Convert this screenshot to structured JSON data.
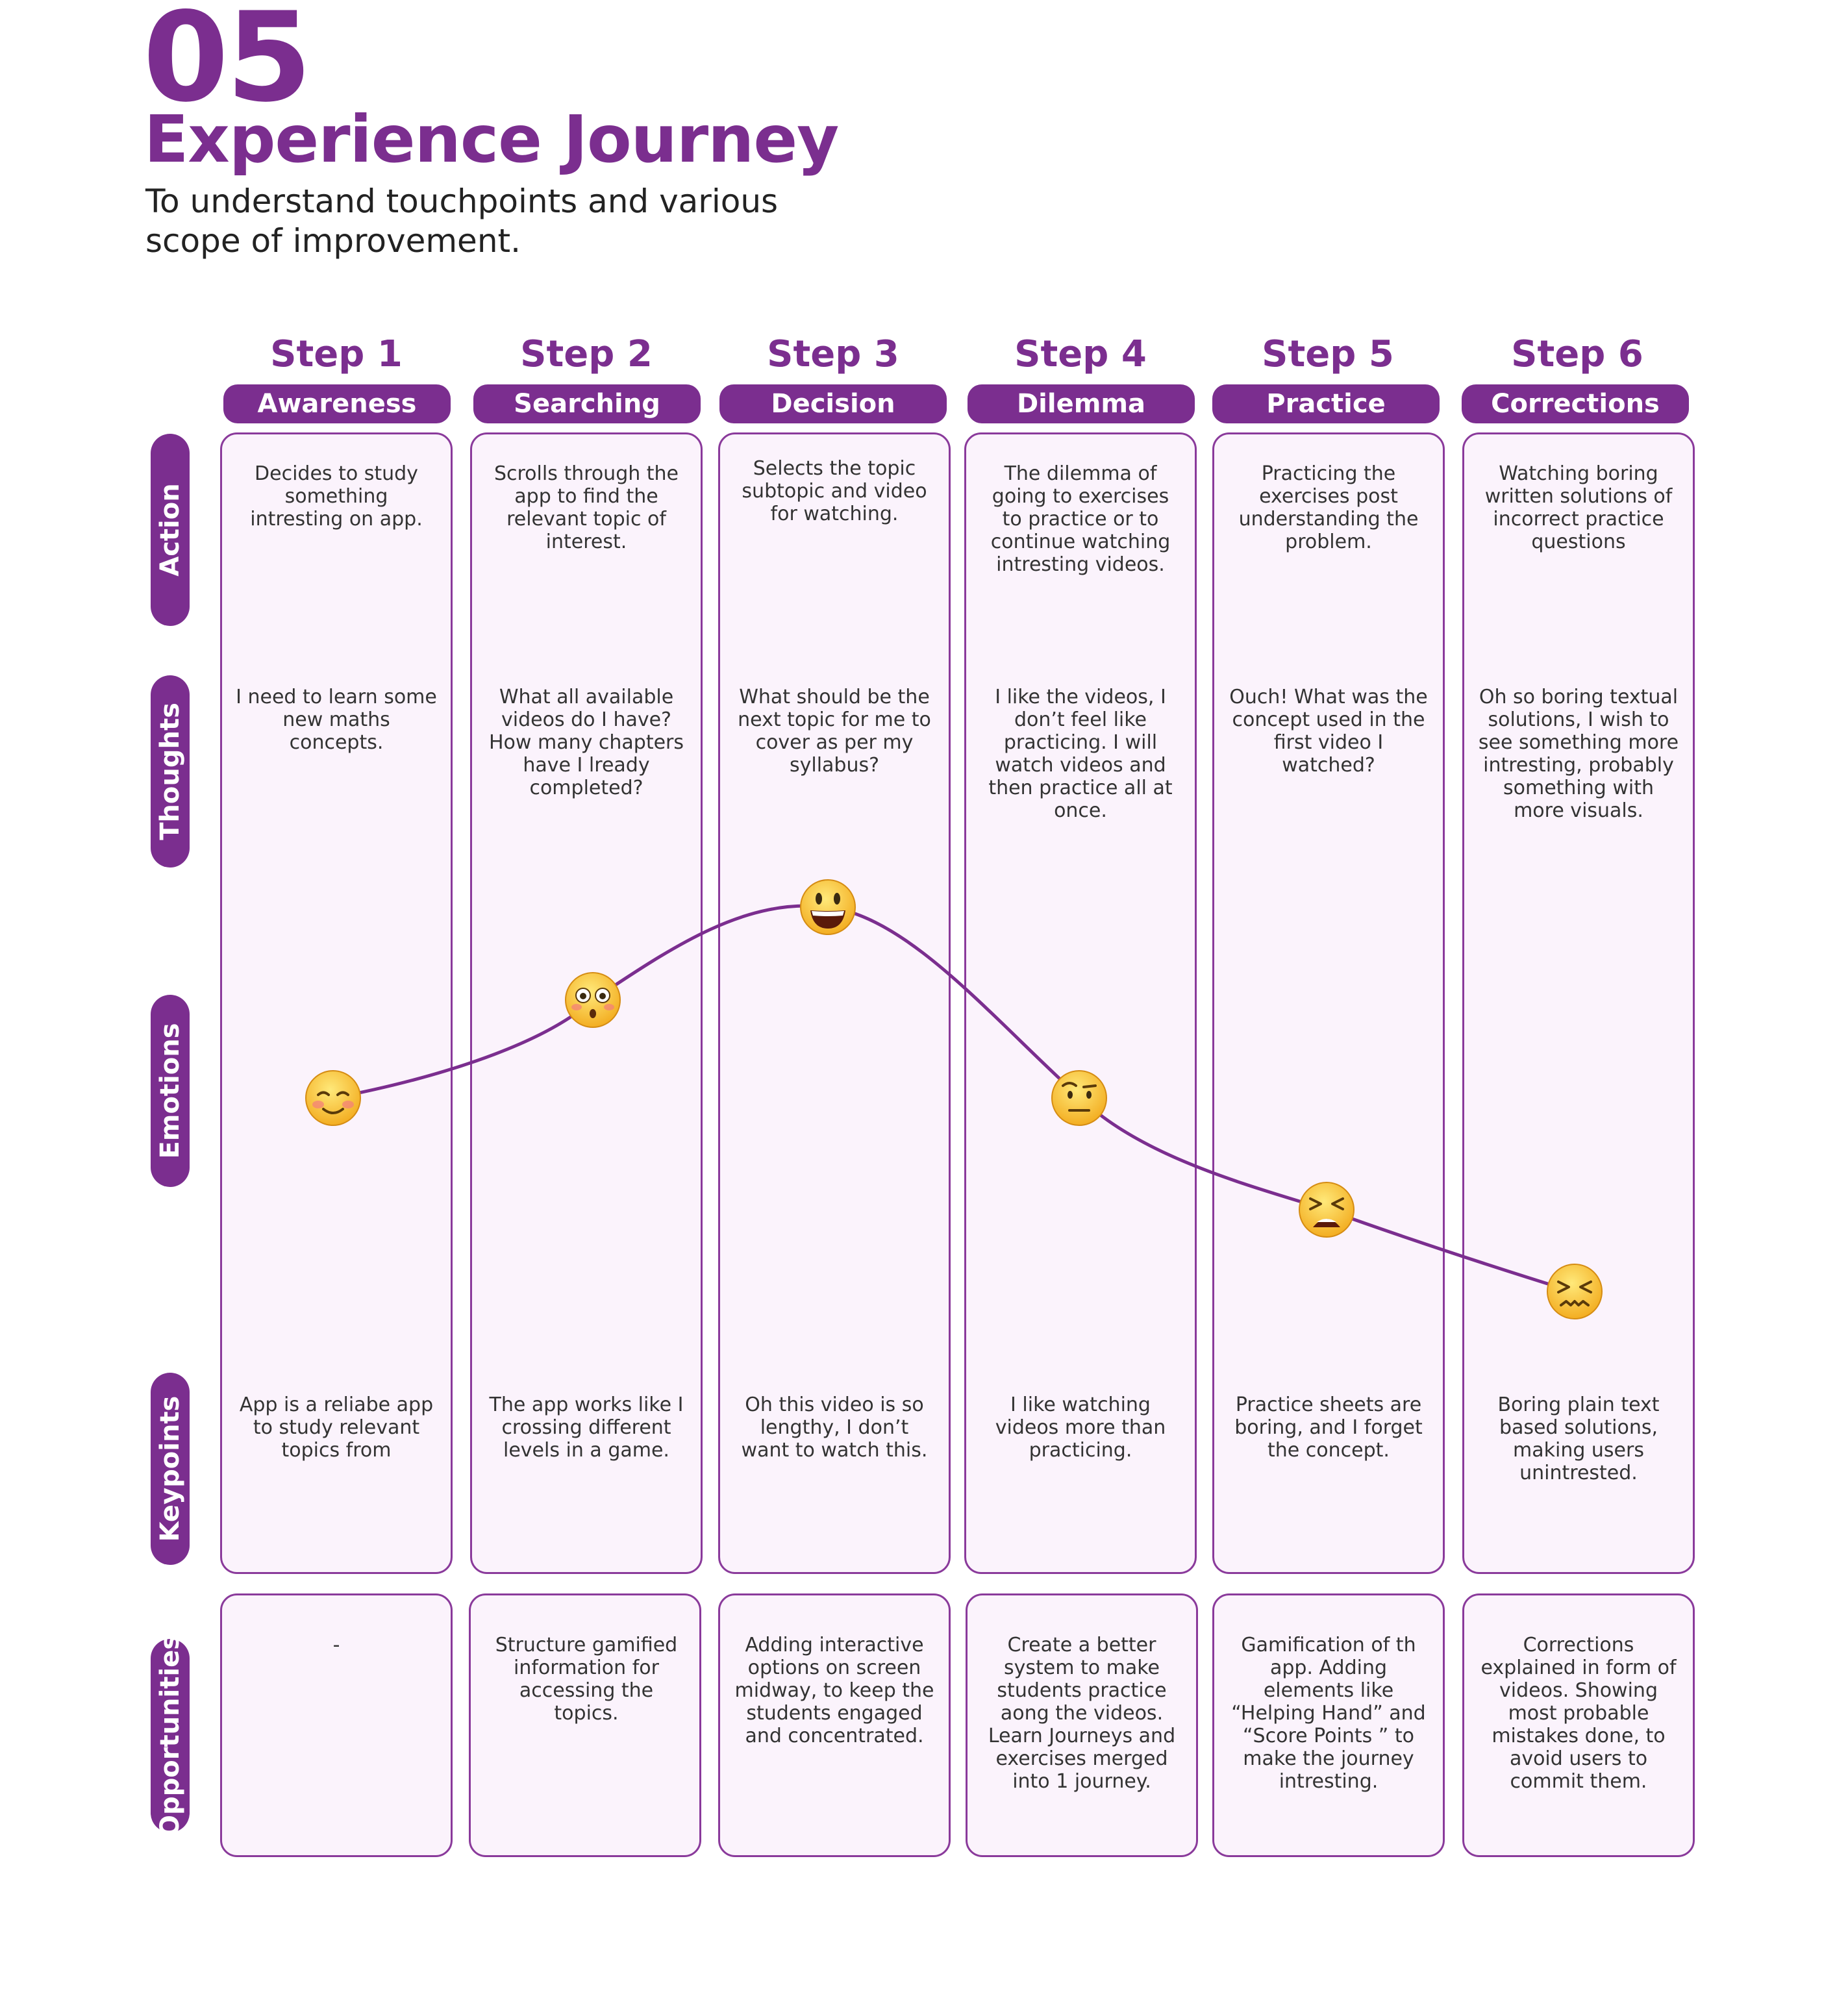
{
  "header": {
    "number": "05",
    "title": "Experience Journey",
    "subtitle": "To understand touchpoints and various scope of improvement."
  },
  "rows": [
    "Action",
    "Thoughts",
    "Emotions",
    "Keypoints",
    "Opportunities"
  ],
  "steps": [
    {
      "title": "Step 1",
      "stage": "Awareness",
      "action": "Decides to study something intresting on app.",
      "thought": "I need to learn some new maths concepts.",
      "emotion": "smiling-blush-icon",
      "keypoint": "App is a reliabe app to study relevant topics from",
      "opportunity": "-"
    },
    {
      "title": "Step 2",
      "stage": "Searching",
      "action": "Scrolls through the app to find the relevant topic of interest.",
      "thought": "What all available videos do I have? How many chapters have I lready completed?",
      "emotion": "flushed-surprised-icon",
      "keypoint": "The app works like I crossing different levels in a game.",
      "opportunity": "Structure gamified information for accessing the topics."
    },
    {
      "title": "Step 3",
      "stage": "Decision",
      "action": "Selects the topic subtopic and video for watching.",
      "thought": "What should be the next topic for me to cover as per my syllabus?",
      "emotion": "grinning-icon",
      "keypoint": "Oh this video is so lengthy, I don’t want to watch this.",
      "opportunity": "Adding interactive options on screen midway, to keep the students engaged and concentrated."
    },
    {
      "title": "Step 4",
      "stage": "Dilemma",
      "action": "The dilemma of going to exercises to practice or to continue watching intresting videos.",
      "thought": "I like the videos, I don’t feel like practicing. I will watch videos and then practice all at once.",
      "emotion": "raised-eyebrow-icon",
      "keypoint": "I like watching videos more than practicing.",
      "opportunity": "Create a better system to make students practice aong the videos. Learn Journeys and exercises merged into 1 journey."
    },
    {
      "title": "Step 5",
      "stage": "Practice",
      "action": "Practicing the exercises post understanding the problem.",
      "thought": "Ouch! What was the concept used in the first video I watched?",
      "emotion": "tired-face-icon",
      "keypoint": "Practice sheets are boring, and I forget the concept.",
      "opportunity": "Gamification of th app. Adding elements like “Helping Hand” and “Score Points ” to make the journey intresting."
    },
    {
      "title": "Step 6",
      "stage": "Corrections",
      "action": "Watching boring written solutions of incorrect practice questions",
      "thought": "Oh so boring textual solutions, I wish to see something more intresting, probably something with more visuals.",
      "emotion": "confounded-face-icon",
      "keypoint": "Boring plain text based solutions, making users unintrested.",
      "opportunity": "Corrections explained in form of videos. Showing most probable mistakes done, to avoid users to commit them."
    }
  ],
  "colors": {
    "accent": "#7b2e8f",
    "panel": "#fbf3fc",
    "border": "#8a3a9b"
  }
}
